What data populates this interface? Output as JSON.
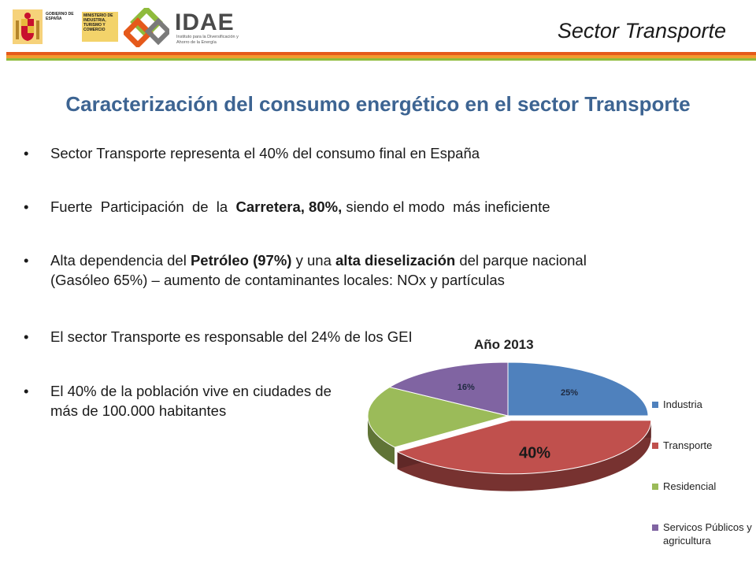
{
  "header": {
    "gobierno_text": "GOBIERNO DE ESPAÑA",
    "ministerio_text": "MINISTERIO DE INDUSTRIA, TURISMO Y COMERCIO",
    "idae_name": "IDAE",
    "idae_subtitle": "Instituto para la Diversificación y Ahorro de la Energía",
    "section_title": "Sector Transporte",
    "colors": {
      "stripe_orange": "#e5591b",
      "stripe_amber": "#f29a2e",
      "stripe_green": "#8fbb3c"
    }
  },
  "title": "Caracterización del consumo energético en el sector Transporte",
  "bullets": {
    "b1": "Sector Transporte representa el 40% del consumo final en España",
    "b2": {
      "part1": "Fuerte  Participación  de  la  ",
      "bold1": "Carretera, 80%,",
      "part2": " siendo el modo  más ineficiente"
    },
    "b3": {
      "part1": "Alta dependencia del ",
      "bold1": "Petróleo (97%)",
      "part2": " y una ",
      "bold2": "alta dieselización",
      "part3": " del parque nacional",
      "line2": "(Gasóleo 65%) – aumento de contaminantes locales: NOx y partículas"
    },
    "b4": "El sector Transporte es responsable del 24% de los GEI",
    "b5": {
      "line1": "El 40% de la población vive en ciudades de",
      "line2": "más de 100.000 habitantes"
    }
  },
  "chart_data": {
    "type": "pie",
    "title": "Año 2013",
    "categories": [
      "Industria",
      "Transporte",
      "Residencial",
      "Servicos Públicos y agricultura"
    ],
    "values": [
      25,
      40,
      19,
      16
    ],
    "value_labels": [
      "25%",
      "40%",
      "",
      "16%"
    ],
    "colors": [
      "#4f81bd",
      "#c0504d",
      "#9bbb59",
      "#8064a2"
    ],
    "legend": "right",
    "style": "3d"
  }
}
